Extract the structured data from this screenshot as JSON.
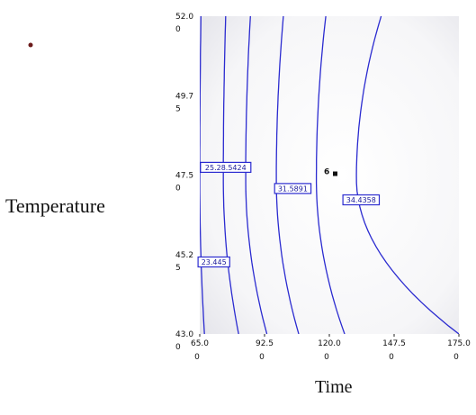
{
  "chart_data": {
    "type": "contour",
    "xlabel": "Time",
    "ylabel": "Temperature",
    "xlim": [
      65,
      175
    ],
    "ylim": [
      43,
      52
    ],
    "x_ticks": [
      {
        "value": 65,
        "line1": "65.0",
        "line2": "0"
      },
      {
        "value": 92.5,
        "line1": "92.5",
        "line2": "0"
      },
      {
        "value": 120,
        "line1": "120.0",
        "line2": "0"
      },
      {
        "value": 147.5,
        "line1": "147.5",
        "line2": "0"
      },
      {
        "value": 175,
        "line1": "175.0",
        "line2": "0"
      }
    ],
    "y_ticks": [
      {
        "value": 43,
        "line1": "43.0",
        "line2": "0"
      },
      {
        "value": 45.25,
        "line1": "45.2",
        "line2": "5"
      },
      {
        "value": 47.5,
        "line1": "47.5",
        "line2": "0"
      },
      {
        "value": 49.75,
        "line1": "49.7",
        "line2": "5"
      },
      {
        "value": 52,
        "line1": "52.0",
        "line2": "0"
      }
    ],
    "contour_lines": [
      {
        "x_at_bottom": 67.0,
        "x_at_top": 65.5,
        "x_at_mid": 65.0
      },
      {
        "x_at_bottom": 81.5,
        "x_at_top": 76.0,
        "x_at_mid": 75.0
      },
      {
        "x_at_bottom": 93.5,
        "x_at_top": 86.5,
        "x_at_mid": 84.5
      },
      {
        "x_at_bottom": 107.0,
        "x_at_top": 100.5,
        "x_at_mid": 97.5
      },
      {
        "x_at_bottom": 126.5,
        "x_at_top": 118.5,
        "x_at_mid": 114.5
      },
      {
        "x_at_bottom": 175.0,
        "x_at_top": 142.0,
        "x_at_mid": 131.5
      }
    ],
    "contour_labels": [
      {
        "text": "25.28.5424",
        "x": 76.0,
        "y": 47.72
      },
      {
        "text": "31.5891",
        "x": 104.5,
        "y": 47.12
      },
      {
        "text": "34.4358",
        "x": 133.5,
        "y": 46.8
      },
      {
        "text": "23.445",
        "x": 71.0,
        "y": 45.04
      }
    ],
    "design_point": {
      "label": "6",
      "x": 120.0,
      "y": 47.5
    },
    "colors": {
      "contour": "#2b2bd0",
      "label_border": "#2b2bd0",
      "label_text": "#1a1a9a",
      "point": "#111111",
      "stray_dot": "#6b1a1a",
      "plot_shade": "#ededf2"
    }
  }
}
